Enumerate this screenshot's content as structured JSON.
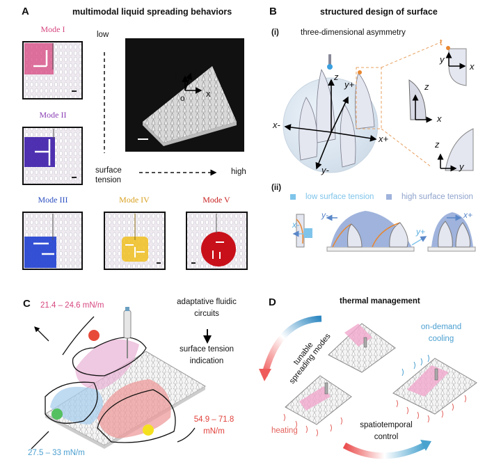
{
  "panel_a": {
    "label": "A",
    "title": "multimodal liquid spreading behaviors",
    "modes": [
      {
        "name": "Mode I",
        "color": "#d6467f"
      },
      {
        "name": "Mode II",
        "color": "#8a3fb5"
      },
      {
        "name": "Mode III",
        "color": "#2c4fc0"
      },
      {
        "name": "Mode IV",
        "color": "#d8a020"
      },
      {
        "name": "Mode V",
        "color": "#c81e1e"
      }
    ],
    "low": "low",
    "high": "high",
    "axis_label_line1": "surface",
    "axis_label_line2": "tension",
    "photo_axes": {
      "z": "z",
      "y": "y",
      "x": "x",
      "o": "o"
    }
  },
  "panel_b": {
    "label": "B",
    "title": "structured design of surface",
    "sub_i": "(i)",
    "sub_i_title": "three-dimensional asymmetry",
    "axes": {
      "z": "z",
      "y_plus": "y+",
      "y_minus": "y-",
      "x_plus": "x+",
      "x_minus": "x-",
      "x": "x",
      "y": "y",
      "t": "t"
    },
    "sub_ii": "(ii)",
    "legend": [
      {
        "label": "low surface tension",
        "color": "#7fc4ea"
      },
      {
        "label": "high surface tension",
        "color": "#9fb3dc"
      }
    ]
  },
  "panel_c": {
    "label": "C",
    "range_pink": "21.4 – 24.6 mN/m",
    "range_red_line1": "54.9 – 71.8",
    "range_red_line2": "mN/m",
    "range_blue": "27.5 – 33 mN/m",
    "text_top_line1": "adaptative fluidic",
    "text_top_line2": "circuits",
    "text_bottom_line1": "surface tension",
    "text_bottom_line2": "indication"
  },
  "panel_d": {
    "label": "D",
    "title": "thermal management",
    "cooling_line1": "on-demand",
    "cooling_line2": "cooling",
    "heating": "heating",
    "control_line1": "spatiotemporal",
    "control_line2": "control",
    "tunable_line1": "tunable",
    "tunable_line2": "spreading modes"
  },
  "colors": {
    "pink": "#d6467f",
    "blue": "#4a9fd0",
    "red": "#e0403a",
    "orange": "#e8862e",
    "heat": "#e2605a"
  }
}
